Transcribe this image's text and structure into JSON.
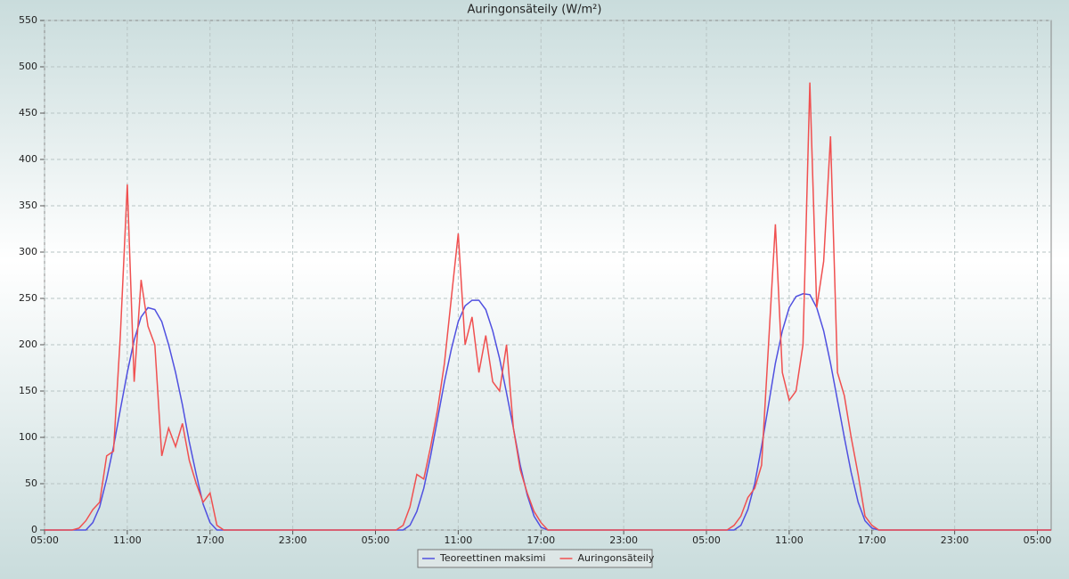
{
  "chart_data": {
    "type": "line",
    "title": "Auringonsäteily (W/m²)",
    "x": [
      0,
      2,
      2.5,
      3,
      3.5,
      4,
      4.5,
      5,
      5.5,
      6,
      6.5,
      7,
      7.5,
      8,
      8.5,
      9,
      9.5,
      10,
      10.5,
      11,
      11.5,
      12,
      12.5,
      13,
      25.5,
      26,
      26.5,
      27,
      27.5,
      28,
      28.5,
      29,
      29.5,
      30,
      30.5,
      31,
      31.5,
      32,
      32.5,
      33,
      33.5,
      34,
      34.5,
      35,
      35.5,
      36,
      36.5,
      49.5,
      50,
      50.5,
      51,
      51.5,
      52,
      52.5,
      53,
      53.5,
      54,
      54.5,
      55,
      55.5,
      56,
      56.5,
      57,
      57.5,
      58,
      58.5,
      59,
      59.5,
      60,
      60.5,
      73
    ],
    "series": [
      {
        "name": "Teoreettinen maksimi",
        "color": "#5050e0",
        "values": [
          0,
          0,
          0,
          0,
          8,
          25,
          55,
          90,
          130,
          170,
          205,
          230,
          240,
          238,
          225,
          200,
          170,
          135,
          95,
          60,
          28,
          8,
          0,
          0,
          0,
          0,
          5,
          20,
          45,
          80,
          120,
          160,
          195,
          225,
          242,
          248,
          248,
          238,
          215,
          185,
          148,
          110,
          70,
          38,
          15,
          3,
          0,
          0,
          0,
          5,
          22,
          50,
          90,
          135,
          180,
          215,
          240,
          252,
          255,
          254,
          240,
          215,
          180,
          140,
          100,
          62,
          30,
          10,
          2,
          0,
          0
        ]
      },
      {
        "name": "Auringonsäteily",
        "color": "#f05050",
        "values": [
          0,
          0,
          2,
          10,
          22,
          30,
          80,
          85,
          210,
          373,
          160,
          270,
          220,
          200,
          80,
          110,
          90,
          115,
          75,
          50,
          30,
          40,
          5,
          0,
          0,
          5,
          25,
          60,
          55,
          90,
          130,
          180,
          250,
          320,
          200,
          230,
          170,
          210,
          160,
          150,
          200,
          110,
          65,
          40,
          20,
          8,
          0,
          0,
          5,
          15,
          35,
          45,
          70,
          200,
          330,
          170,
          140,
          150,
          200,
          483,
          240,
          290,
          425,
          170,
          145,
          100,
          60,
          15,
          5,
          0,
          0
        ]
      }
    ],
    "xlim": [
      0,
      73
    ],
    "xticks": [
      {
        "value": 0,
        "label": "05:00"
      },
      {
        "value": 6,
        "label": "11:00"
      },
      {
        "value": 12,
        "label": "17:00"
      },
      {
        "value": 18,
        "label": "23:00"
      },
      {
        "value": 24,
        "label": "05:00"
      },
      {
        "value": 30,
        "label": "11:00"
      },
      {
        "value": 36,
        "label": "17:00"
      },
      {
        "value": 42,
        "label": "23:00"
      },
      {
        "value": 48,
        "label": "05:00"
      },
      {
        "value": 54,
        "label": "11:00"
      },
      {
        "value": 60,
        "label": "17:00"
      },
      {
        "value": 66,
        "label": "23:00"
      },
      {
        "value": 72,
        "label": "05:00"
      }
    ],
    "ylim": [
      0,
      550
    ],
    "yticks": [
      0,
      50,
      100,
      150,
      200,
      250,
      300,
      350,
      400,
      450,
      500,
      550
    ],
    "grid": true,
    "legend": "bottom"
  }
}
